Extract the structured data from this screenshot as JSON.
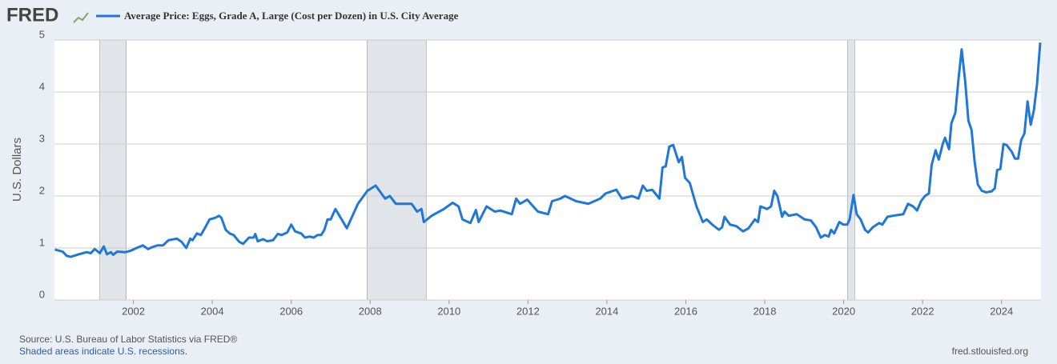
{
  "chart_data": {
    "type": "line",
    "logo": "FRED",
    "ylabel": "U.S. Dollars",
    "source": "Source: U.S. Bureau of Labor Statistics via FRED®",
    "note": "Shaded areas indicate U.S. recessions.",
    "site": "fred.stlouisfed.org",
    "xlim": [
      2000,
      2025
    ],
    "xticks": [
      2002,
      2004,
      2006,
      2008,
      2010,
      2012,
      2014,
      2016,
      2018,
      2020,
      2022,
      2024
    ],
    "ylim": [
      0,
      5
    ],
    "yticks": [
      0,
      1,
      2,
      3,
      4,
      5
    ],
    "grid": true,
    "recessions": [
      [
        2001.15,
        2001.82
      ],
      [
        2007.92,
        2009.42
      ],
      [
        2020.1,
        2020.28
      ]
    ],
    "recession_color": "#e1e5ea",
    "x": [
      2000.01,
      2000.21,
      2000.31,
      2000.41,
      2000.62,
      2000.82,
      2000.92,
      2001.02,
      2001.15,
      2001.25,
      2001.33,
      2001.43,
      2001.49,
      2001.59,
      2001.8,
      2001.94,
      2002.08,
      2002.24,
      2002.37,
      2002.49,
      2002.61,
      2002.75,
      2002.89,
      2003.1,
      2003.22,
      2003.34,
      2003.44,
      2003.5,
      2003.61,
      2003.71,
      2003.81,
      2003.93,
      2004.07,
      2004.17,
      2004.23,
      2004.34,
      2004.44,
      2004.54,
      2004.68,
      2004.78,
      2004.93,
      2005.05,
      2005.09,
      2005.15,
      2005.29,
      2005.39,
      2005.54,
      2005.66,
      2005.76,
      2005.9,
      2006.0,
      2006.1,
      2006.25,
      2006.35,
      2006.47,
      2006.57,
      2006.67,
      2006.76,
      2006.84,
      2006.92,
      2007.0,
      2007.12,
      2007.41,
      2007.69,
      2007.93,
      2008.14,
      2008.38,
      2008.5,
      2008.65,
      2009.05,
      2009.19,
      2009.3,
      2009.36,
      2009.56,
      2009.87,
      2010.09,
      2010.24,
      2010.34,
      2010.54,
      2010.68,
      2010.75,
      2010.95,
      2011.16,
      2011.3,
      2011.59,
      2011.7,
      2011.8,
      2011.98,
      2012.25,
      2012.51,
      2012.61,
      2012.82,
      2012.94,
      2013.22,
      2013.53,
      2013.83,
      2013.97,
      2014.24,
      2014.38,
      2014.64,
      2014.8,
      2014.91,
      2015.01,
      2015.15,
      2015.33,
      2015.41,
      2015.49,
      2015.58,
      2015.68,
      2015.82,
      2015.9,
      2015.98,
      2016.1,
      2016.27,
      2016.43,
      2016.53,
      2016.67,
      2016.84,
      2016.92,
      2016.98,
      2017.12,
      2017.28,
      2017.45,
      2017.59,
      2017.75,
      2017.83,
      2017.89,
      2018.06,
      2018.16,
      2018.24,
      2018.32,
      2018.44,
      2018.5,
      2018.61,
      2018.81,
      2019.01,
      2019.17,
      2019.3,
      2019.42,
      2019.52,
      2019.62,
      2019.68,
      2019.76,
      2019.89,
      2019.99,
      2020.09,
      2020.15,
      2020.25,
      2020.33,
      2020.43,
      2020.54,
      2020.62,
      2020.74,
      2020.9,
      2020.98,
      2021.11,
      2021.25,
      2021.51,
      2021.63,
      2021.76,
      2021.86,
      2021.96,
      2022.06,
      2022.16,
      2022.23,
      2022.33,
      2022.41,
      2022.51,
      2022.57,
      2022.67,
      2022.73,
      2022.83,
      2022.91,
      2022.99,
      2023.08,
      2023.16,
      2023.24,
      2023.32,
      2023.4,
      2023.5,
      2023.61,
      2023.75,
      2023.83,
      2023.89,
      2023.97,
      2024.05,
      2024.13,
      2024.26,
      2024.34,
      2024.42,
      2024.5,
      2024.58,
      2024.66,
      2024.74,
      2024.82,
      2024.9,
      2024.98
    ],
    "series": [
      {
        "name": "Average Price: Eggs, Grade A, Large (Cost per Dozen) in U.S. City Average",
        "color": "#1f77d8",
        "values": [
          0.97,
          0.93,
          0.85,
          0.83,
          0.88,
          0.92,
          0.9,
          0.98,
          0.9,
          1.03,
          0.88,
          0.92,
          0.87,
          0.93,
          0.92,
          0.95,
          1.0,
          1.05,
          0.98,
          1.02,
          1.05,
          1.05,
          1.15,
          1.18,
          1.12,
          1.0,
          1.18,
          1.15,
          1.28,
          1.25,
          1.38,
          1.55,
          1.58,
          1.62,
          1.58,
          1.35,
          1.28,
          1.25,
          1.12,
          1.08,
          1.2,
          1.2,
          1.27,
          1.13,
          1.17,
          1.13,
          1.15,
          1.27,
          1.25,
          1.3,
          1.45,
          1.32,
          1.28,
          1.2,
          1.22,
          1.2,
          1.25,
          1.25,
          1.35,
          1.55,
          1.55,
          1.75,
          1.38,
          1.85,
          2.1,
          2.2,
          1.95,
          2.0,
          1.85,
          1.85,
          1.7,
          1.75,
          1.5,
          1.62,
          1.75,
          1.87,
          1.8,
          1.55,
          1.48,
          1.73,
          1.5,
          1.8,
          1.7,
          1.72,
          1.65,
          1.95,
          1.85,
          1.93,
          1.7,
          1.65,
          1.9,
          1.95,
          2.0,
          1.9,
          1.85,
          1.95,
          2.05,
          2.12,
          1.95,
          2.0,
          1.95,
          2.2,
          2.1,
          2.12,
          1.95,
          2.55,
          2.57,
          2.95,
          2.98,
          2.65,
          2.75,
          2.35,
          2.25,
          1.8,
          1.5,
          1.55,
          1.45,
          1.35,
          1.4,
          1.6,
          1.45,
          1.42,
          1.32,
          1.38,
          1.55,
          1.5,
          1.8,
          1.75,
          1.8,
          2.1,
          2.0,
          1.6,
          1.7,
          1.62,
          1.65,
          1.55,
          1.53,
          1.4,
          1.2,
          1.25,
          1.22,
          1.35,
          1.28,
          1.5,
          1.45,
          1.45,
          1.55,
          2.02,
          1.65,
          1.55,
          1.35,
          1.3,
          1.4,
          1.48,
          1.45,
          1.6,
          1.62,
          1.65,
          1.85,
          1.8,
          1.72,
          1.9,
          2.0,
          2.05,
          2.6,
          2.88,
          2.7,
          3.0,
          3.12,
          2.9,
          3.4,
          3.6,
          4.25,
          4.82,
          4.2,
          3.45,
          3.27,
          2.65,
          2.22,
          2.1,
          2.07,
          2.09,
          2.15,
          2.5,
          2.52,
          3.0,
          2.98,
          2.85,
          2.72,
          2.72,
          3.08,
          3.2,
          3.82,
          3.37,
          3.65,
          4.15,
          4.95
        ]
      }
    ]
  }
}
